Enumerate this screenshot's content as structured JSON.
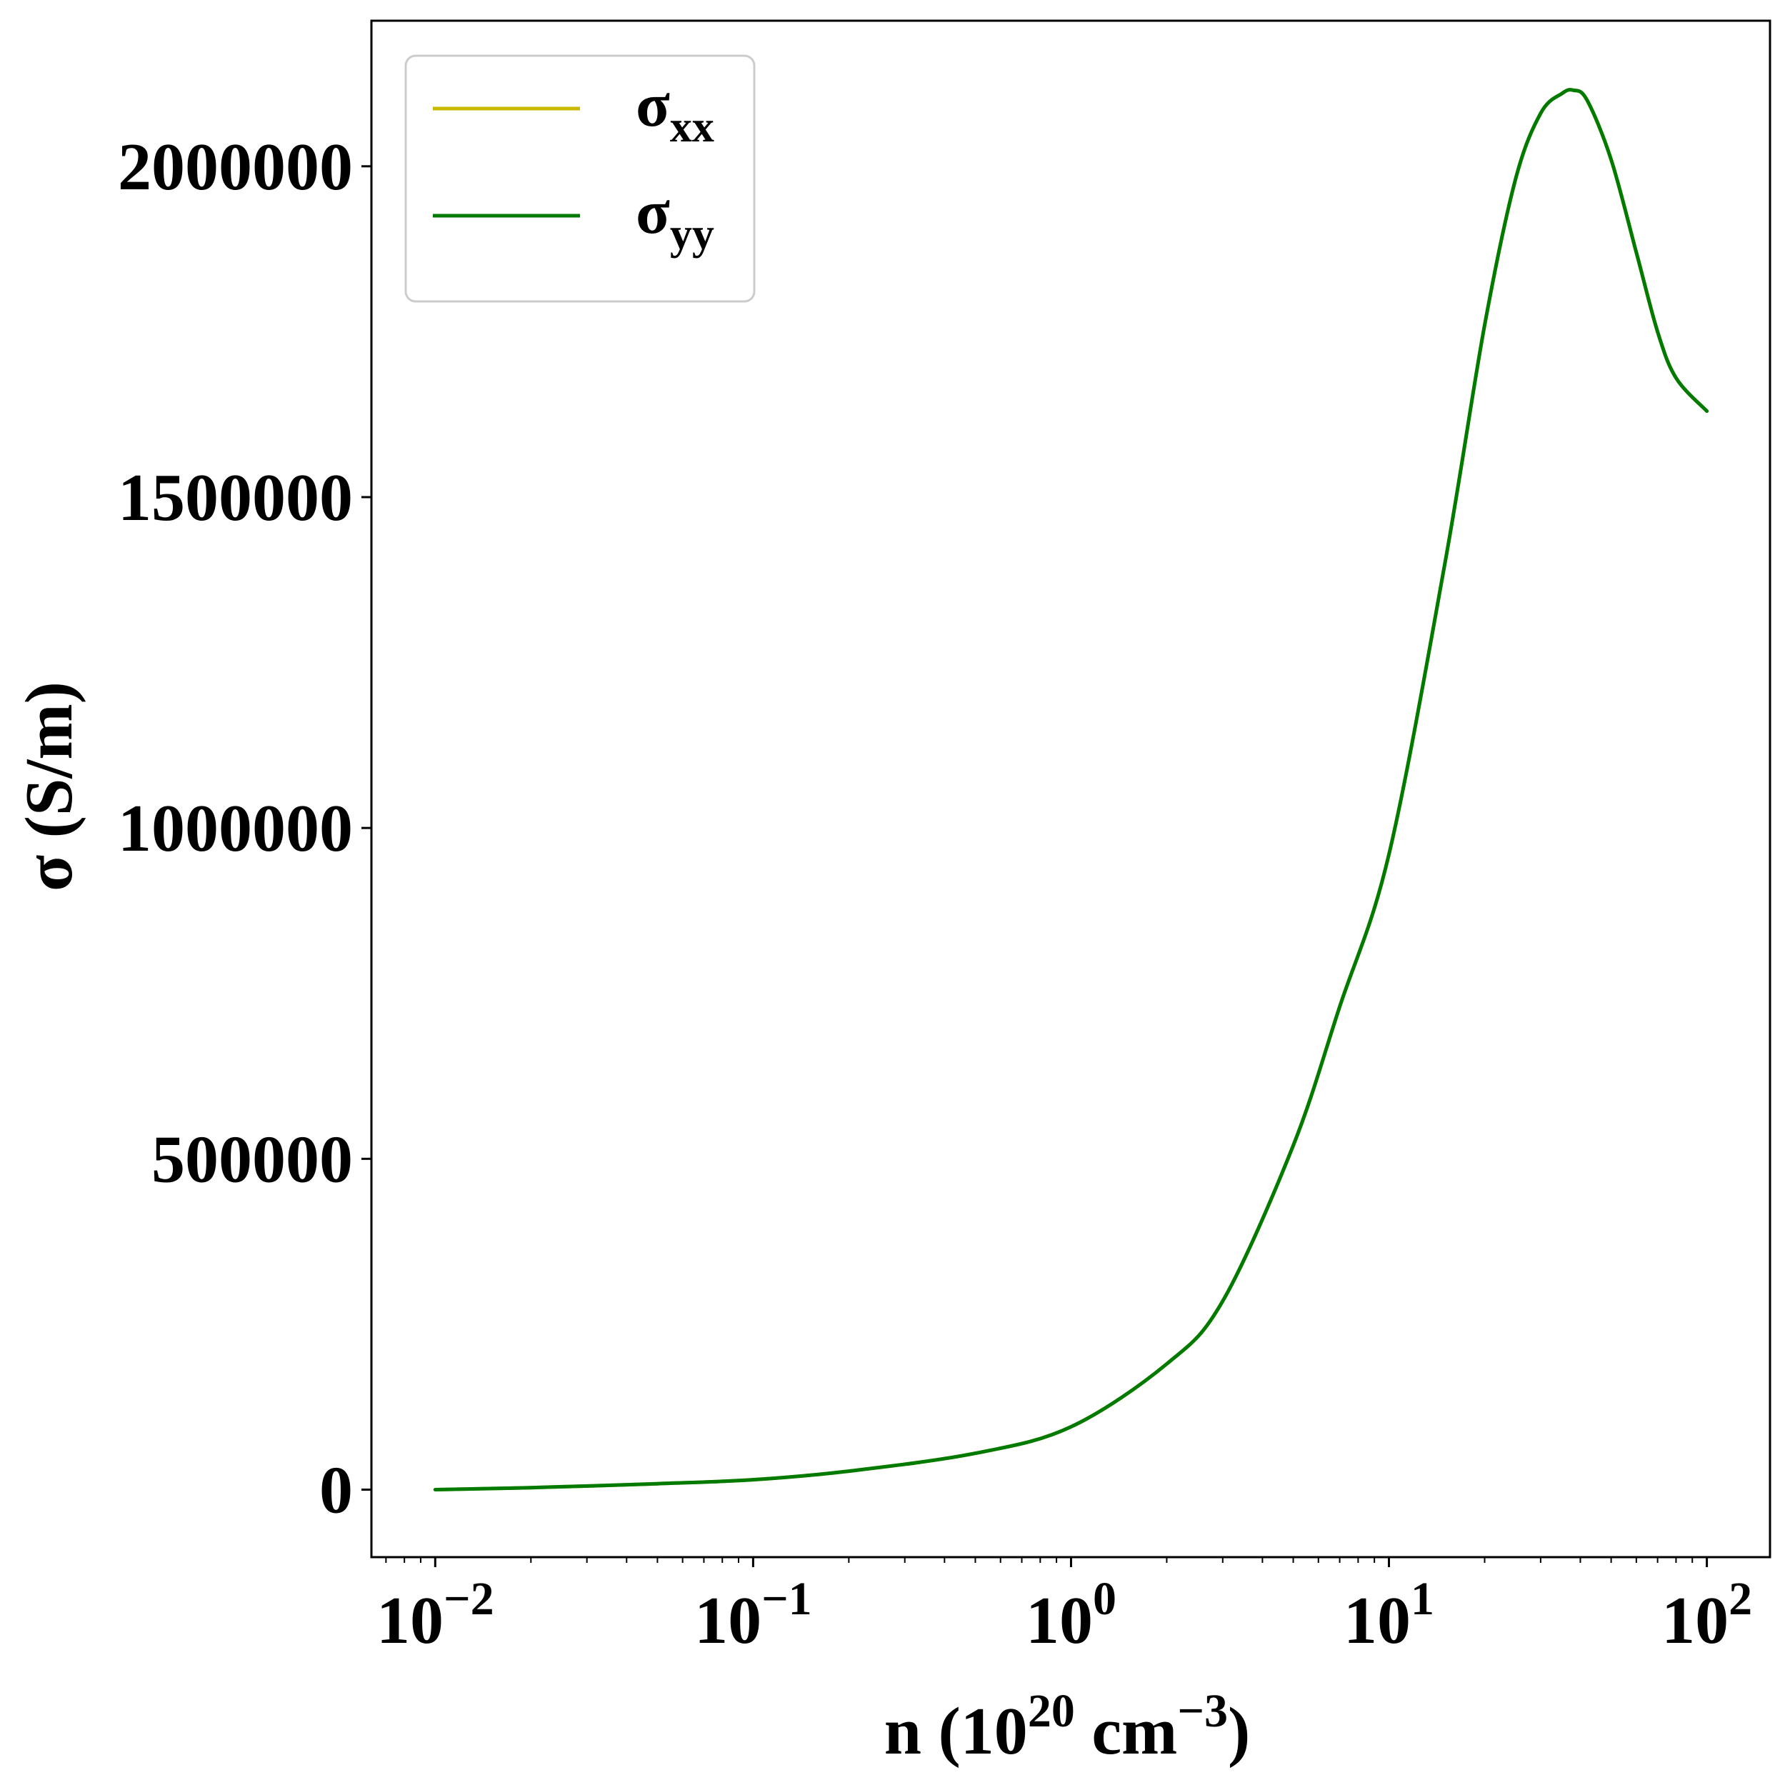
{
  "chart_data": {
    "type": "line",
    "xscale": "log",
    "xlim": [
      0.0063,
      158
    ],
    "ylim": [
      -102000,
      2220000
    ],
    "grid": false,
    "legend_position": "upper-left",
    "xlabel": {
      "base": "n (10",
      "exp1": "20",
      "mid": " cm",
      "exp2": "−3",
      "end": ")"
    },
    "ylabel": "σ (S/m)",
    "x_ticks": [
      {
        "value": 0.01,
        "base": "10",
        "exp": "−2"
      },
      {
        "value": 0.1,
        "base": "10",
        "exp": "−1"
      },
      {
        "value": 1,
        "base": "10",
        "exp": "0"
      },
      {
        "value": 10,
        "base": "10",
        "exp": "1"
      },
      {
        "value": 100,
        "base": "10",
        "exp": "2"
      }
    ],
    "y_ticks": [
      {
        "value": 0,
        "label": "0"
      },
      {
        "value": 500000,
        "label": "500000"
      },
      {
        "value": 1000000,
        "label": "1000000"
      },
      {
        "value": 1500000,
        "label": "1500000"
      },
      {
        "value": 2000000,
        "label": "2000000"
      }
    ],
    "series": [
      {
        "name": "σxx",
        "label_main": "σ",
        "label_sub": "xx",
        "color": "#c8b800",
        "x": [
          0.01,
          0.02,
          0.05,
          0.1,
          0.2,
          0.5,
          1,
          2,
          3,
          5,
          7,
          10,
          15,
          20,
          25,
          30,
          35,
          38,
          42,
          50,
          60,
          70,
          80,
          100
        ],
        "y": [
          0,
          3000,
          9000,
          15000,
          28000,
          55000,
          95000,
          190000,
          285000,
          520000,
          730000,
          960000,
          1400000,
          1760000,
          1980000,
          2080000,
          2110000,
          2115000,
          2100000,
          2010000,
          1870000,
          1750000,
          1680000,
          1630000
        ]
      },
      {
        "name": "σyy",
        "label_main": "σ",
        "label_sub": "yy",
        "color": "#007a00",
        "x": [
          0.01,
          0.02,
          0.05,
          0.1,
          0.2,
          0.5,
          1,
          2,
          3,
          5,
          7,
          10,
          15,
          20,
          25,
          30,
          35,
          38,
          42,
          50,
          60,
          70,
          80,
          100
        ],
        "y": [
          0,
          3000,
          9000,
          15000,
          28000,
          55000,
          95000,
          190000,
          285000,
          520000,
          730000,
          960000,
          1400000,
          1760000,
          1980000,
          2080000,
          2110000,
          2115000,
          2100000,
          2010000,
          1870000,
          1750000,
          1680000,
          1630000
        ]
      }
    ]
  }
}
